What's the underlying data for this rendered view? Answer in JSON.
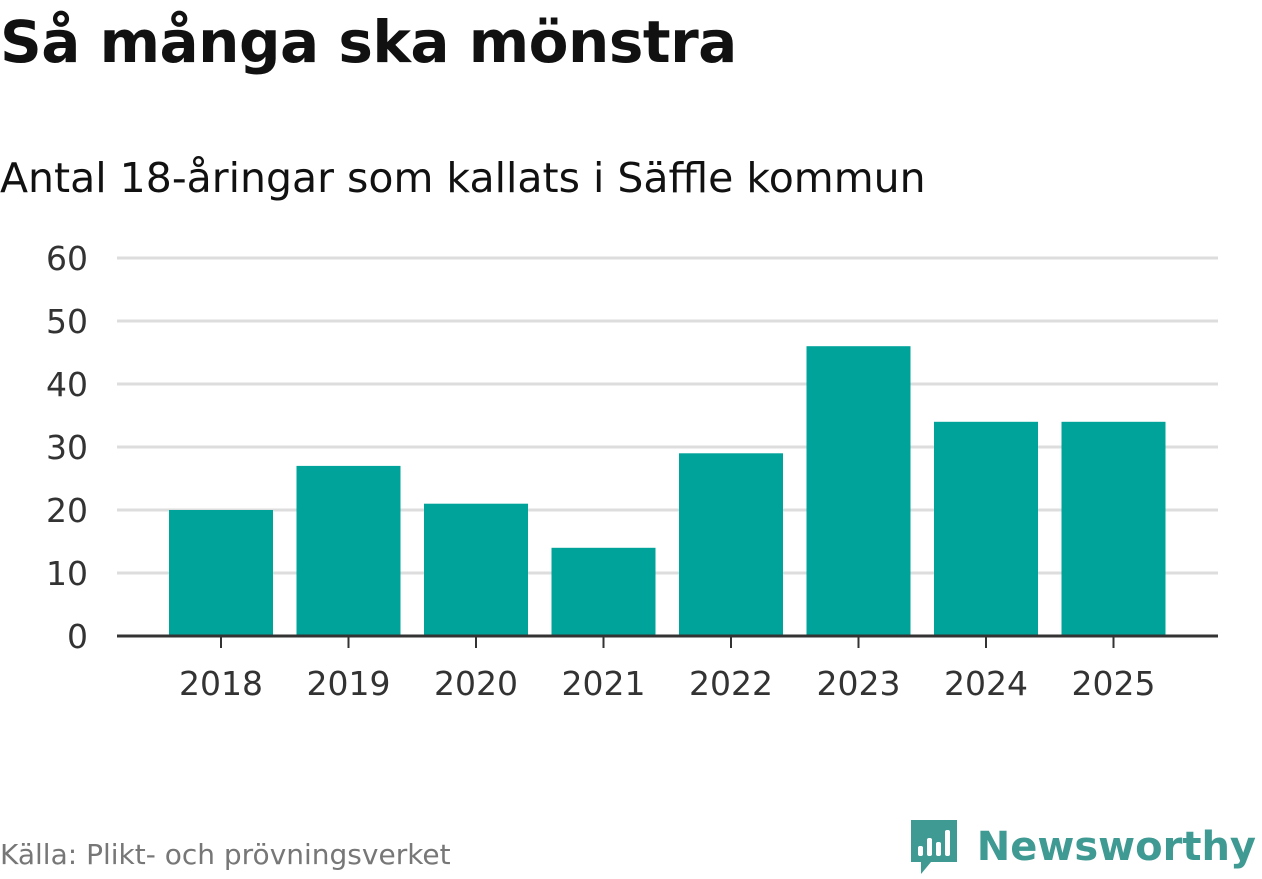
{
  "header": {
    "title": "Så många ska mönstra",
    "subtitle": "Antal 18-åringar som kallats i Säffle kommun"
  },
  "footer": {
    "source": "Källa: Plikt- och prövningsverket",
    "brand": "Newsworthy",
    "brand_icon": "newsworthy-logo-icon"
  },
  "colors": {
    "bar": "#00a39a",
    "brand": "#3e9a92",
    "grid": "#dddddd",
    "axis": "#333333"
  },
  "chart_data": {
    "type": "bar",
    "title": "Så många ska mönstra",
    "subtitle": "Antal 18-åringar som kallats i Säffle kommun",
    "xlabel": "",
    "ylabel": "",
    "categories": [
      "2018",
      "2019",
      "2020",
      "2021",
      "2022",
      "2023",
      "2024",
      "2025"
    ],
    "values": [
      20,
      27,
      21,
      14,
      29,
      46,
      34,
      34
    ],
    "yticks": [
      0,
      10,
      20,
      30,
      40,
      50,
      60
    ],
    "ylim": [
      0,
      60
    ],
    "grid": true
  }
}
